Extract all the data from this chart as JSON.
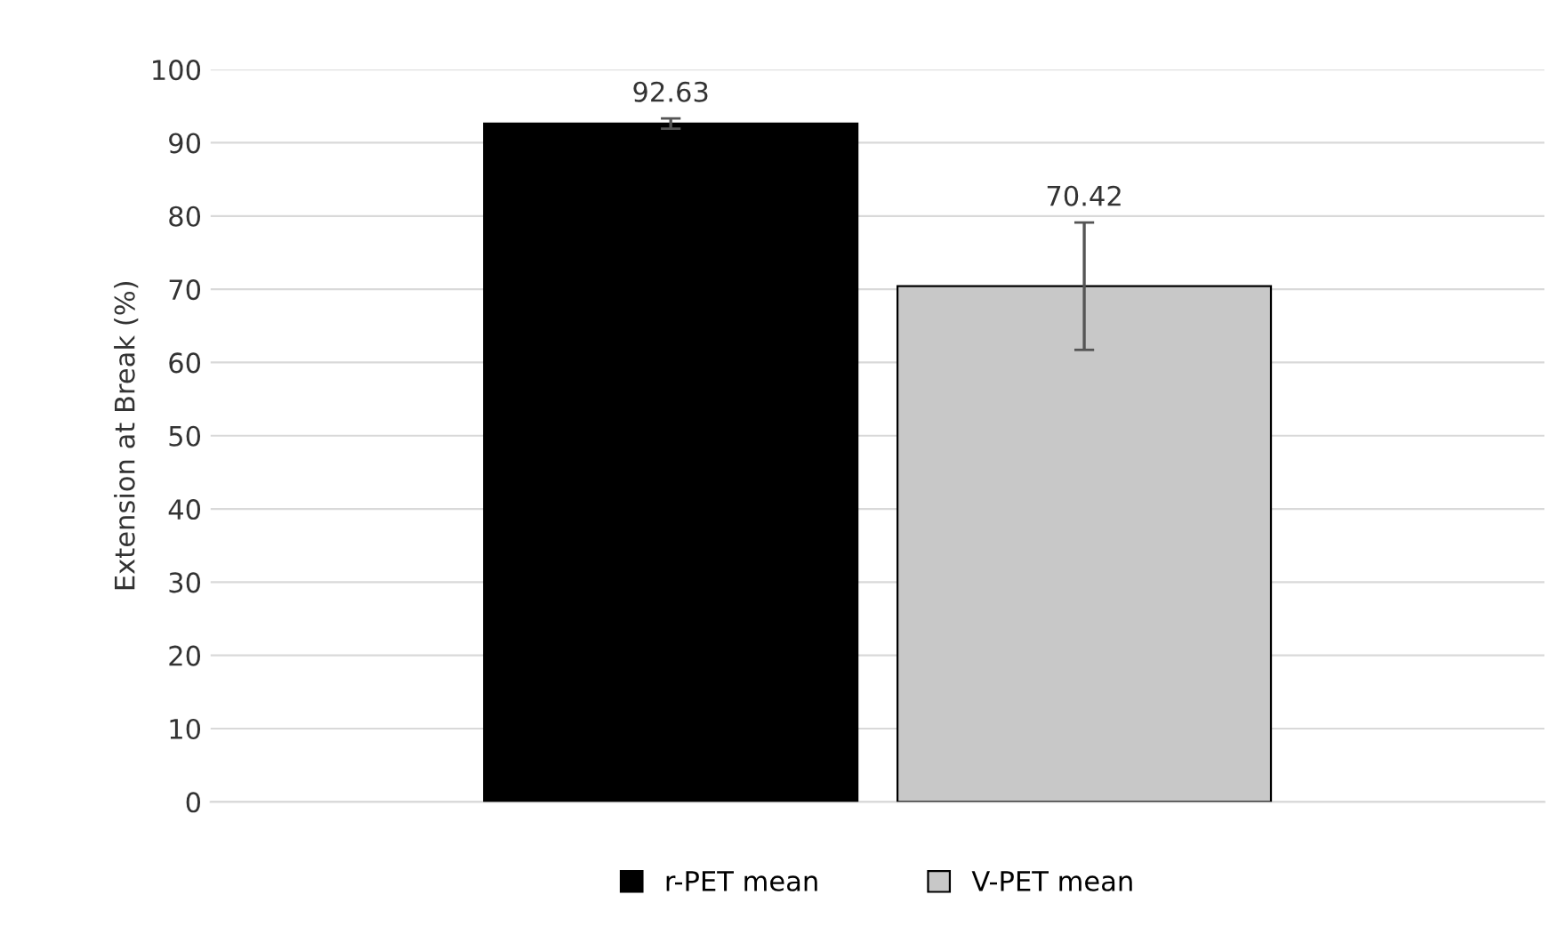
{
  "chart_data": {
    "type": "bar",
    "ylabel": "Extension at Break (%)",
    "categories": [
      null
    ],
    "series": [
      {
        "name": "r-PET mean",
        "color": "#000000",
        "values": [
          92.63
        ],
        "errors": [
          0.7
        ]
      },
      {
        "name": "V-PET mean",
        "color": "#c8c8c8",
        "values": [
          70.42
        ],
        "errors": [
          8.7
        ]
      }
    ],
    "data_labels": true,
    "ylim": [
      0,
      100
    ],
    "yticks": [
      0,
      10,
      20,
      30,
      40,
      50,
      60,
      70,
      80,
      90,
      100
    ],
    "grid": "y",
    "legend": "bottom",
    "tick_labels": "y"
  }
}
